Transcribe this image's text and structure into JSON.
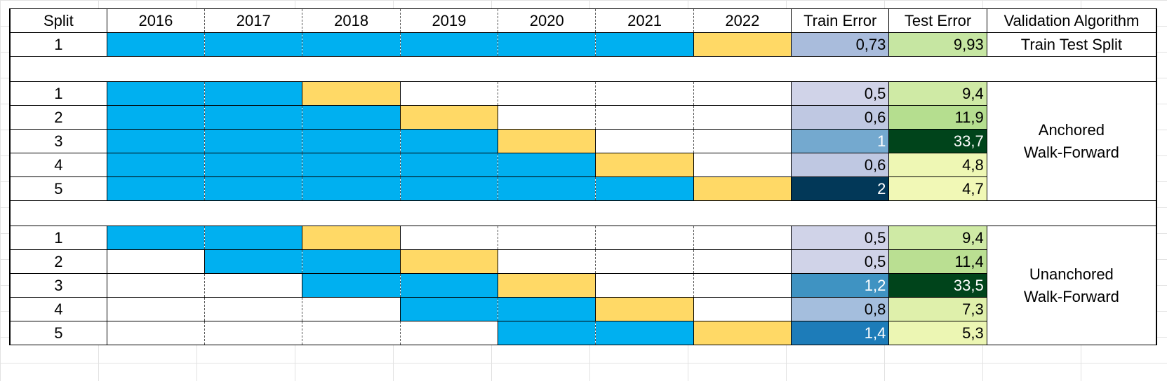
{
  "header": {
    "split": "Split",
    "years": [
      "2016",
      "2017",
      "2018",
      "2019",
      "2020",
      "2021",
      "2022"
    ],
    "train_error": "Train Error",
    "test_error": "Test Error",
    "validation_algorithm": "Validation Algorithm"
  },
  "colors": {
    "train_period": "#00b0f0",
    "test_period": "#ffd966"
  },
  "groups": [
    {
      "algorithm_lines": [
        "Train Test Split"
      ],
      "rows": [
        {
          "split": "1",
          "train_start": 0,
          "test_year": 6,
          "train_error": "0,73",
          "test_error": "9,93",
          "train_error_color": "#a9bcdc",
          "test_error_color": "#c6e6a2",
          "train_error_text": "#000",
          "test_error_text": "#000"
        }
      ]
    },
    {
      "algorithm_lines": [
        "Anchored",
        "Walk-Forward"
      ],
      "rows": [
        {
          "split": "1",
          "train_start": 0,
          "test_year": 2,
          "train_error": "0,5",
          "test_error": "9,4",
          "train_error_color": "#d0d3e8",
          "test_error_color": "#cfeaa5",
          "train_error_text": "#000",
          "test_error_text": "#000"
        },
        {
          "split": "2",
          "train_start": 0,
          "test_year": 3,
          "train_error": "0,6",
          "test_error": "11,9",
          "train_error_color": "#bfc8e2",
          "test_error_color": "#b5de8f",
          "train_error_text": "#000",
          "test_error_text": "#000"
        },
        {
          "split": "3",
          "train_start": 0,
          "test_year": 4,
          "train_error": "1",
          "test_error": "33,7",
          "train_error_color": "#74a9cf",
          "test_error_color": "#00441b",
          "train_error_text": "#fff",
          "test_error_text": "#fff"
        },
        {
          "split": "4",
          "train_start": 0,
          "test_year": 5,
          "train_error": "0,6",
          "test_error": "4,8",
          "train_error_color": "#bfc8e2",
          "test_error_color": "#eef7b4",
          "train_error_text": "#000",
          "test_error_text": "#000"
        },
        {
          "split": "5",
          "train_start": 0,
          "test_year": 6,
          "train_error": "2",
          "test_error": "4,7",
          "train_error_color": "#023858",
          "test_error_color": "#f1f8b6",
          "train_error_text": "#fff",
          "test_error_text": "#000"
        }
      ]
    },
    {
      "algorithm_lines": [
        "Unanchored",
        "Walk-Forward"
      ],
      "rows": [
        {
          "split": "1",
          "train_start": 0,
          "test_year": 2,
          "train_error": "0,5",
          "test_error": "9,4",
          "train_error_color": "#d0d3e8",
          "test_error_color": "#cfeaa5",
          "train_error_text": "#000",
          "test_error_text": "#000"
        },
        {
          "split": "2",
          "train_start": 1,
          "test_year": 3,
          "train_error": "0,5",
          "test_error": "11,4",
          "train_error_color": "#d0d3e8",
          "test_error_color": "#badf92",
          "train_error_text": "#000",
          "test_error_text": "#000"
        },
        {
          "split": "3",
          "train_start": 2,
          "test_year": 4,
          "train_error": "1,2",
          "test_error": "33,5",
          "train_error_color": "#3f93c2",
          "test_error_color": "#00441b",
          "train_error_text": "#fff",
          "test_error_text": "#fff"
        },
        {
          "split": "4",
          "train_start": 3,
          "test_year": 5,
          "train_error": "0,8",
          "test_error": "7,3",
          "train_error_color": "#a4bedd",
          "test_error_color": "#dff0ab",
          "train_error_text": "#000",
          "test_error_text": "#000"
        },
        {
          "split": "5",
          "train_start": 4,
          "test_year": 6,
          "train_error": "1,4",
          "test_error": "5,3",
          "train_error_color": "#1d7cb9",
          "test_error_color": "#ecf6b3",
          "train_error_text": "#fff",
          "test_error_text": "#000"
        }
      ]
    }
  ]
}
